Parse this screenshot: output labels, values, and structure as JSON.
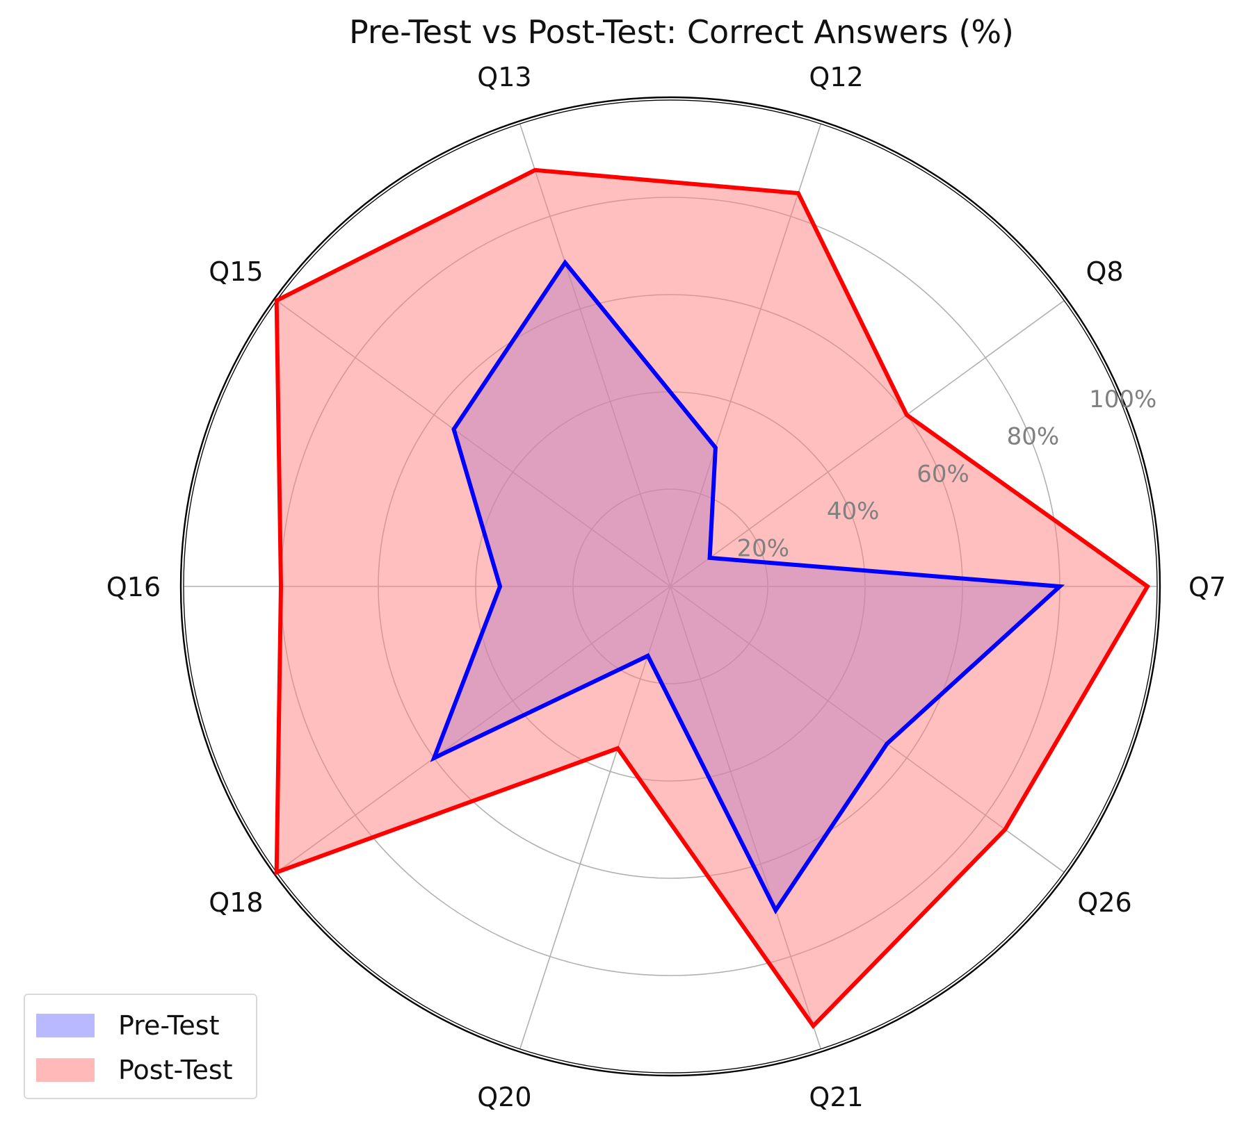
{
  "chart_data": {
    "type": "radar",
    "title": "Pre-Test vs Post-Test: Correct Answers (%)",
    "categories": [
      "Q7",
      "Q8",
      "Q12",
      "Q13",
      "Q15",
      "Q16",
      "Q18",
      "Q20",
      "Q21",
      "Q26"
    ],
    "radial_ticks": [
      20,
      40,
      60,
      80,
      100
    ],
    "radial_tick_labels": [
      "20%",
      "40%",
      "60%",
      "80%",
      "100%"
    ],
    "rlim": [
      0,
      100
    ],
    "grid": true,
    "legend_position": "bottom-left",
    "series": [
      {
        "name": "Pre-Test",
        "values": [
          80,
          10,
          30,
          70,
          55,
          35,
          60,
          15,
          70,
          55
        ],
        "color": "#0000ff",
        "fill": "#8080ff"
      },
      {
        "name": "Post-Test",
        "values": [
          98,
          60,
          85,
          90,
          100,
          80,
          100,
          35,
          95,
          85
        ],
        "color": "#ff0000",
        "fill": "#ff8080"
      }
    ]
  }
}
